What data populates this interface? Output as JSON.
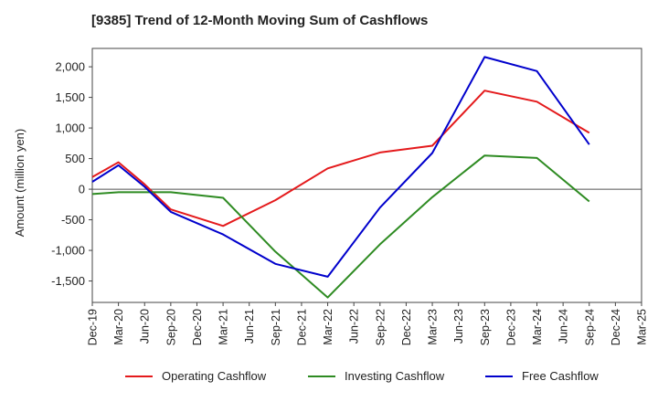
{
  "title": "[9385]  Trend of 12-Month Moving Sum of Cashflows",
  "chart_data": {
    "type": "line",
    "title": "[9385]  Trend of 12-Month Moving Sum of Cashflows",
    "xlabel": "",
    "ylabel": "Amount (million yen)",
    "categories": [
      "Dec-19",
      "Mar-20",
      "Jun-20",
      "Sep-20",
      "Dec-20",
      "Mar-21",
      "Jun-21",
      "Sep-21",
      "Dec-21",
      "Mar-22",
      "Jun-22",
      "Sep-22",
      "Dec-22",
      "Mar-23",
      "Jun-23",
      "Sep-23",
      "Dec-23",
      "Mar-24",
      "Jun-24",
      "Sep-24",
      "Dec-24",
      "Mar-25"
    ],
    "ylim": [
      -1850,
      2300
    ],
    "yticks": [
      -1500,
      -1000,
      -500,
      0,
      500,
      1000,
      1500,
      2000
    ],
    "ytick_labels": [
      "-1,500",
      "-1,000",
      "-500",
      "0",
      "500",
      "1,000",
      "1,500",
      "2,000"
    ],
    "grid": true,
    "legend_position": "bottom",
    "series": [
      {
        "name": "Operating Cashflow",
        "color": "#e41a1c",
        "values": [
          200,
          440,
          80,
          -330,
          null,
          -600,
          null,
          -180,
          null,
          340,
          null,
          600,
          null,
          710,
          null,
          1610,
          null,
          1430,
          null,
          920,
          null,
          null
        ]
      },
      {
        "name": "Investing Cashflow",
        "color": "#2e8b22",
        "values": [
          -80,
          -50,
          -50,
          -50,
          null,
          -140,
          null,
          -1020,
          null,
          -1770,
          null,
          -900,
          null,
          -130,
          null,
          550,
          null,
          510,
          null,
          -200,
          null,
          null
        ]
      },
      {
        "name": "Free Cashflow",
        "color": "#0000cc",
        "values": [
          120,
          390,
          40,
          -370,
          null,
          -740,
          null,
          -1220,
          null,
          -1430,
          null,
          -300,
          null,
          590,
          null,
          2160,
          null,
          1930,
          null,
          730,
          null,
          null
        ]
      }
    ]
  }
}
